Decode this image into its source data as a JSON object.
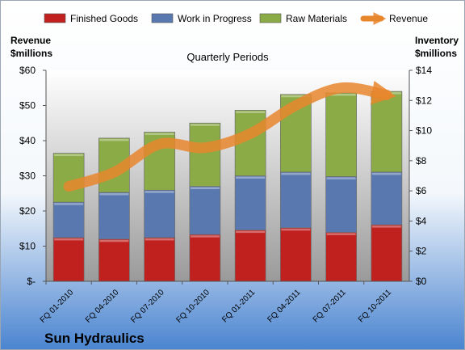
{
  "chart_data": {
    "type": "bar",
    "stacked": true,
    "title": "Quarterly Periods",
    "company": "Sun Hydraulics",
    "categories": [
      "FQ 01-2010",
      "FQ 04-2010",
      "FQ 07-2010",
      "FQ 10-2010",
      "FQ 01-2011",
      "FQ 04-2011",
      "FQ 07-2011",
      "FQ 10-2011"
    ],
    "left_axis": {
      "label_line1": "Revenue",
      "label_line2": "$millions",
      "min": 0,
      "max": 60,
      "step": 10,
      "tick_labels": [
        "$-",
        "$10",
        "$20",
        "$30",
        "$40",
        "$50",
        "$60"
      ]
    },
    "right_axis": {
      "label_line1": "Inventory",
      "label_line2": "$millions",
      "min": 0,
      "max": 14,
      "step": 2,
      "tick_labels": [
        "$0",
        "$2",
        "$4",
        "$6",
        "$8",
        "$10",
        "$12",
        "$14"
      ]
    },
    "series": [
      {
        "name": "Finished Goods",
        "axis": "right",
        "color": "#c0201e",
        "values": [
          2.9,
          2.8,
          2.9,
          3.1,
          3.4,
          3.55,
          3.25,
          3.75
        ]
      },
      {
        "name": "Work in Progress",
        "axis": "right",
        "color": "#5a78b0",
        "values": [
          2.35,
          3.1,
          3.15,
          3.2,
          3.6,
          3.7,
          3.7,
          3.5
        ]
      },
      {
        "name": "Raw Materials",
        "axis": "right",
        "color": "#8aab45",
        "values": [
          3.25,
          3.6,
          3.85,
          4.2,
          4.35,
          5.15,
          5.55,
          5.35
        ]
      },
      {
        "name": "Revenue",
        "type": "line",
        "axis": "left",
        "color": "#e8862e",
        "values": [
          27,
          31,
          39,
          38,
          42,
          50,
          55,
          53
        ]
      }
    ],
    "legend_position": "top",
    "grid": false
  }
}
